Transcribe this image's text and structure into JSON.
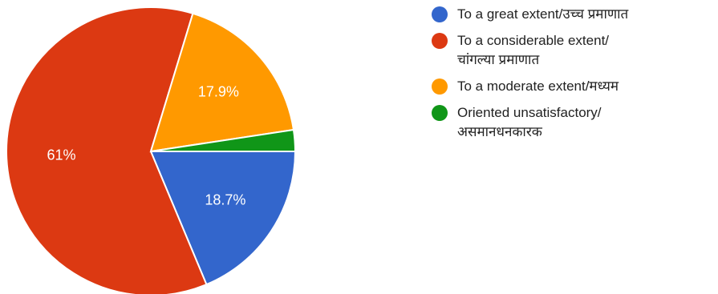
{
  "chart_data": {
    "type": "pie",
    "title": "",
    "start_angle_deg": 0,
    "direction": "clockwise",
    "slices": [
      {
        "name": "To a great extent/उच्च प्रमाणात",
        "value": 18.7,
        "label": "18.7%",
        "color": "#3366cc"
      },
      {
        "name": "To a considerable extent/ चांगल्या प्रमाणात",
        "value": 61.0,
        "label": "61%",
        "color": "#dc3912"
      },
      {
        "name": "To a moderate extent/मध्यम",
        "value": 17.9,
        "label": "17.9%",
        "color": "#ff9900"
      },
      {
        "name": "Oriented unsatisfactory/ असमानधनकारक",
        "value": 2.4,
        "label": "",
        "color": "#109618"
      }
    ],
    "legend_position": "right"
  },
  "legend": {
    "items": [
      {
        "line1": "To a great extent/उच्च प्रमाणात",
        "line2": ""
      },
      {
        "line1": "To a considerable extent/",
        "line2": "चांगल्या प्रमाणात"
      },
      {
        "line1": "To a moderate extent/मध्यम",
        "line2": ""
      },
      {
        "line1": "Oriented unsatisfactory/",
        "line2": "असमानधनकारक"
      }
    ]
  }
}
